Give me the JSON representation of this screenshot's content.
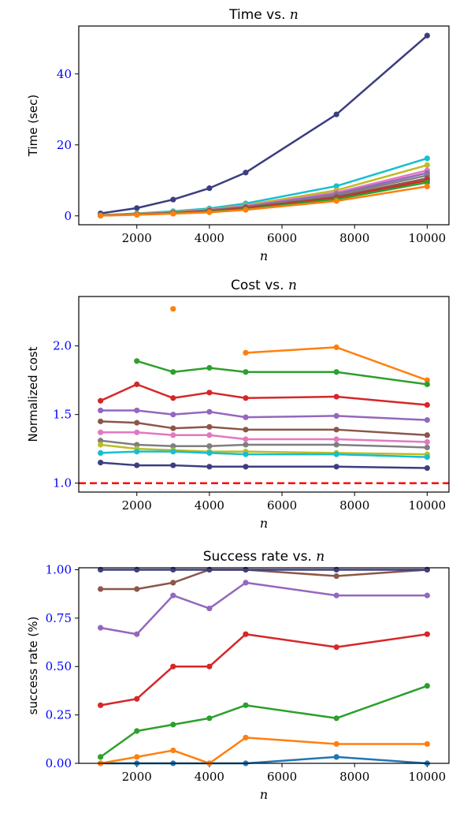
{
  "colors": {
    "ytick": "#0000ff",
    "xtick": "#000000",
    "reference": "#ff0000"
  },
  "chart_data": [
    {
      "type": "line",
      "title": "Time vs.",
      "title_var": "n",
      "xlabel": "n",
      "ylabel": "Time (sec)",
      "xlim": [
        400,
        10600
      ],
      "ylim": [
        -2.5,
        53.5
      ],
      "xticks": [
        2000,
        4000,
        6000,
        8000,
        10000
      ],
      "yticks": [
        0,
        20,
        40
      ],
      "x": [
        1000,
        2000,
        3000,
        4000,
        5000,
        7500,
        10000
      ],
      "series": [
        {
          "color": "#3b3e7f",
          "values": [
            0.7,
            2.2,
            4.6,
            7.8,
            12.2,
            28.6,
            50.8
          ]
        },
        {
          "color": "#17becf",
          "values": [
            0.2,
            0.7,
            1.3,
            2.1,
            3.5,
            8.4,
            16.2
          ]
        },
        {
          "color": "#bcbd22",
          "values": [
            0.15,
            0.6,
            1.1,
            1.8,
            3.0,
            7.2,
            14.3
          ]
        },
        {
          "color": "#e377c2",
          "values": [
            0.15,
            0.5,
            1.0,
            1.7,
            2.8,
            6.6,
            12.8
          ]
        },
        {
          "color": "#9467bd",
          "values": [
            0.12,
            0.5,
            0.9,
            1.6,
            2.6,
            6.2,
            12.1
          ]
        },
        {
          "color": "#7f7f7f",
          "values": [
            0.12,
            0.45,
            0.9,
            1.5,
            2.5,
            5.8,
            11.4
          ]
        },
        {
          "color": "#8c564b",
          "values": [
            0.1,
            0.4,
            0.8,
            1.4,
            2.3,
            5.3,
            10.6
          ]
        },
        {
          "color": "#d62728",
          "values": [
            0.1,
            0.4,
            0.75,
            1.3,
            2.1,
            5.0,
            10.0
          ]
        },
        {
          "color": "#2ca02c",
          "values": [
            0.08,
            0.35,
            0.7,
            1.2,
            1.9,
            4.7,
            9.4
          ]
        },
        {
          "color": "#ff7f0e",
          "values": [
            0.05,
            0.3,
            0.6,
            1.0,
            1.7,
            4.2,
            8.3
          ]
        }
      ]
    },
    {
      "type": "line",
      "title": "Cost vs.",
      "title_var": "n",
      "xlabel": "n",
      "ylabel": "Normalized cost",
      "xlim": [
        400,
        10600
      ],
      "ylim": [
        0.935,
        2.36
      ],
      "xticks": [
        2000,
        4000,
        6000,
        8000,
        10000
      ],
      "yticks": [
        1.0,
        1.5,
        2.0
      ],
      "ytick_labels": [
        "1.0",
        "1.5",
        "2.0"
      ],
      "reference_line": 1.0,
      "x": [
        1000,
        2000,
        3000,
        4000,
        5000,
        7500,
        10000
      ],
      "series": [
        {
          "color": "#ff7f0e",
          "values": [
            null,
            null,
            2.27,
            null,
            1.95,
            1.99,
            1.75
          ]
        },
        {
          "color": "#2ca02c",
          "values": [
            null,
            1.89,
            1.81,
            1.84,
            1.81,
            1.81,
            1.72
          ]
        },
        {
          "color": "#d62728",
          "values": [
            1.6,
            1.72,
            1.62,
            1.66,
            1.62,
            1.63,
            1.57
          ]
        },
        {
          "color": "#9467bd",
          "values": [
            1.53,
            1.53,
            1.5,
            1.52,
            1.48,
            1.49,
            1.46
          ]
        },
        {
          "color": "#8c564b",
          "values": [
            1.45,
            1.44,
            1.4,
            1.41,
            1.39,
            1.39,
            1.35
          ]
        },
        {
          "color": "#e377c2",
          "values": [
            1.37,
            1.37,
            1.35,
            1.35,
            1.32,
            1.32,
            1.3
          ]
        },
        {
          "color": "#7f7f7f",
          "values": [
            1.31,
            1.28,
            1.27,
            1.27,
            1.28,
            1.28,
            1.26
          ]
        },
        {
          "color": "#bcbd22",
          "values": [
            1.28,
            1.25,
            1.24,
            1.23,
            1.23,
            1.22,
            1.21
          ]
        },
        {
          "color": "#17becf",
          "values": [
            1.22,
            1.23,
            1.23,
            1.22,
            1.21,
            1.21,
            1.19
          ]
        },
        {
          "color": "#3b3e7f",
          "values": [
            1.15,
            1.13,
            1.13,
            1.12,
            1.12,
            1.12,
            1.11
          ]
        }
      ]
    },
    {
      "type": "line",
      "title": "Success rate vs.",
      "title_var": "n",
      "xlabel": "n",
      "ylabel": "success rate (%)",
      "xlim": [
        400,
        10600
      ],
      "ylim": [
        0.0,
        1.01
      ],
      "xticks": [
        2000,
        4000,
        6000,
        8000,
        10000
      ],
      "yticks": [
        0.0,
        0.25,
        0.5,
        0.75,
        1.0
      ],
      "ytick_labels": [
        "0.00",
        "0.25",
        "0.50",
        "0.75",
        "1.00"
      ],
      "x": [
        1000,
        2000,
        3000,
        4000,
        5000,
        7500,
        10000
      ],
      "series": [
        {
          "color": "#1f77b4",
          "values": [
            0.0,
            0.0,
            0.0,
            0.0,
            0.0,
            0.033,
            0.0
          ]
        },
        {
          "color": "#ff7f0e",
          "values": [
            0.0,
            0.033,
            0.067,
            0.0,
            0.133,
            0.1,
            0.1
          ]
        },
        {
          "color": "#2ca02c",
          "values": [
            0.033,
            0.167,
            0.2,
            0.233,
            0.3,
            0.233,
            0.4
          ]
        },
        {
          "color": "#d62728",
          "values": [
            0.3,
            0.333,
            0.5,
            0.5,
            0.667,
            0.6,
            0.667
          ]
        },
        {
          "color": "#9467bd",
          "values": [
            0.7,
            0.667,
            0.867,
            0.8,
            0.933,
            0.867,
            0.867
          ]
        },
        {
          "color": "#8c564b",
          "values": [
            0.9,
            0.9,
            0.933,
            1.0,
            1.0,
            0.967,
            1.0
          ]
        },
        {
          "color": "#3b3e7f",
          "values": [
            1.0,
            1.0,
            1.0,
            1.0,
            1.0,
            1.0,
            1.0
          ]
        }
      ]
    }
  ]
}
